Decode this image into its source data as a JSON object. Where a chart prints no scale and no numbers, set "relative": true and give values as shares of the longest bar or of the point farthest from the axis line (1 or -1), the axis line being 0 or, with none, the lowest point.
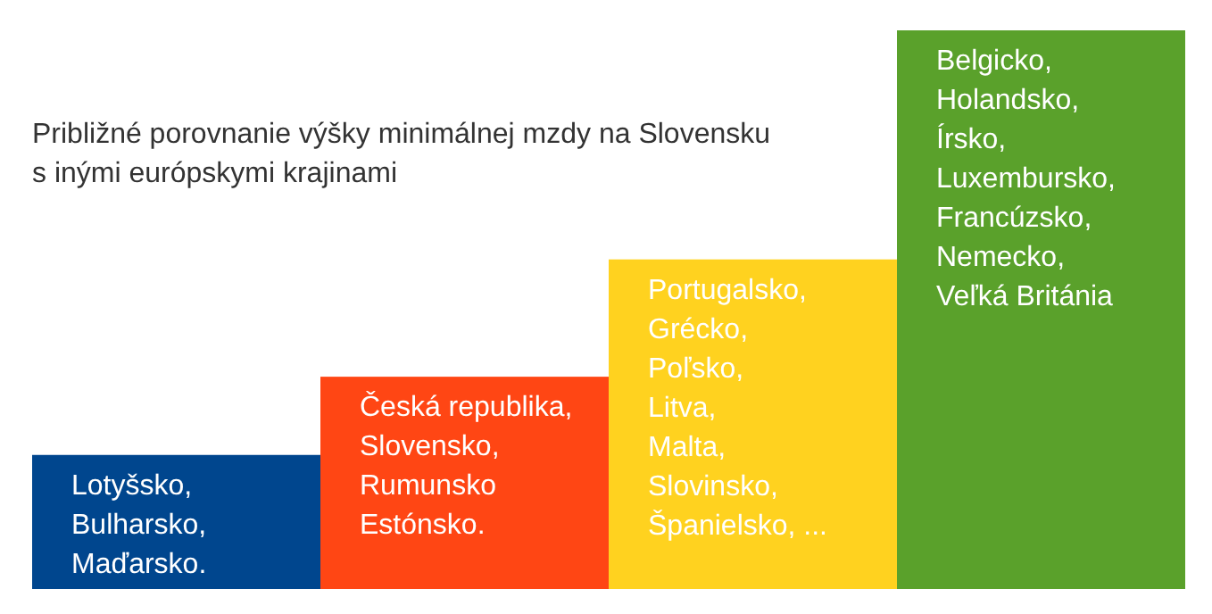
{
  "chart_data": {
    "type": "bar",
    "title": "Približné porovnanie výšky minimálnej mzdy na Slovensku\ns inými európskymi krajinami",
    "relative": true,
    "categories": [
      "Lotyšsko,\nBulharsko,\nMaďarsko.",
      "Česká republika,\nSlovensko,\nRumunsko\nEstónsko.",
      "Portugalsko,\nGrécko,\nPoľsko,\nLitva,\nMalta,\nSlovinsko,\nŠpanielsko, ...",
      "Belgicko,\nHolandsko,\nÍrsko,\nLuxembursko,\nFrancúzsko,\nNemecko,\nVeľká Británia"
    ],
    "values": [
      0.24,
      0.38,
      0.59,
      1
    ],
    "colors": [
      "#00468e",
      "#ff4614",
      "#ffd21f",
      "#5aa12b"
    ]
  }
}
